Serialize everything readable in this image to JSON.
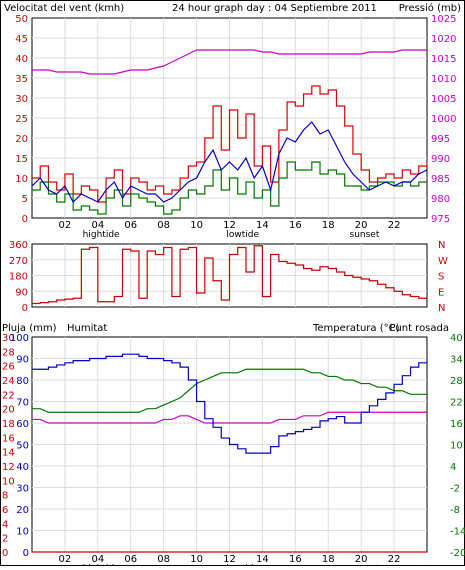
{
  "title": "24 hour graph day : 04 Septiembre 2011",
  "colors": {
    "wind": "#dd0000",
    "gust": "#0000cc",
    "avg": "#007700",
    "pressure": "#cc00cc",
    "dir": "#cc0000",
    "humidity": "#0000cc",
    "temperature": "#007700",
    "dewpoint": "#cc00cc",
    "rain": "#cc0000",
    "grid": "#dddddd",
    "frame": "#000000"
  },
  "x_ticks": [
    "02",
    "04",
    "06",
    "08",
    "10",
    "12",
    "14",
    "16",
    "18",
    "20",
    "22"
  ],
  "tide_labels": [
    "hightide",
    "lowtide",
    "sunset"
  ],
  "chart_data": [
    {
      "type": "line",
      "id": "wind-pressure",
      "left_axis_label": "Velocitat del vent (kmh)",
      "right_axis_label": "Pressió (mb)",
      "ylim_left": [
        0,
        50
      ],
      "ylim_right": [
        975,
        1025
      ],
      "left_ticks": [
        "50",
        "45",
        "40",
        "35",
        "30",
        "25",
        "20",
        "15",
        "10",
        "5",
        "0"
      ],
      "right_ticks": [
        "1025",
        "1020",
        "1015",
        "1010",
        "1005",
        "1000",
        "995",
        "990",
        "985",
        "980",
        "975"
      ],
      "x": [
        0,
        0.5,
        1,
        1.5,
        2,
        2.5,
        3,
        3.5,
        4,
        4.5,
        5,
        5.5,
        6,
        6.5,
        7,
        7.5,
        8,
        8.5,
        9,
        9.5,
        10,
        10.5,
        11,
        11.5,
        12,
        12.5,
        13,
        13.5,
        14,
        14.5,
        15,
        15.5,
        16,
        16.5,
        17,
        17.5,
        18,
        18.5,
        19,
        19.5,
        20,
        20.5,
        21,
        21.5,
        22,
        22.5,
        23,
        23.5,
        24
      ],
      "series": [
        {
          "values": [
            10,
            13,
            9,
            7,
            11,
            6,
            8,
            7,
            4,
            10,
            12,
            6,
            10,
            9,
            7,
            8,
            6,
            7,
            10,
            13,
            14,
            20,
            28,
            17,
            27,
            20,
            26,
            13,
            18,
            9,
            22,
            29,
            28,
            31,
            33,
            31,
            32,
            28,
            23,
            16,
            12,
            9,
            10,
            11,
            10,
            12,
            11,
            13,
            14
          ]
        },
        {
          "values": [
            8,
            10,
            7,
            6,
            8,
            4,
            6,
            5,
            4,
            7,
            9,
            5,
            8,
            7,
            6,
            6,
            4,
            5,
            7,
            9,
            10,
            14,
            17,
            12,
            14,
            12,
            15,
            10,
            13,
            7,
            16,
            20,
            19,
            22,
            24,
            21,
            22,
            18,
            14,
            11,
            9,
            7,
            8,
            9,
            8,
            9,
            9,
            11,
            12
          ]
        },
        {
          "values": [
            7,
            9,
            6,
            4,
            6,
            2,
            3,
            2,
            1,
            5,
            7,
            3,
            6,
            5,
            4,
            3,
            1,
            2,
            5,
            7,
            6,
            8,
            12,
            7,
            10,
            6,
            9,
            5,
            7,
            3,
            10,
            14,
            12,
            12,
            14,
            11,
            12,
            11,
            8,
            8,
            7,
            8,
            9,
            9,
            8,
            9,
            8,
            9,
            9
          ]
        },
        {
          "values": [
            1012,
            1012,
            1012,
            1011.5,
            1011.5,
            1011.5,
            1011.5,
            1011,
            1011,
            1011,
            1011,
            1011.5,
            1012,
            1012,
            1012,
            1012.5,
            1013,
            1014,
            1015,
            1016,
            1017,
            1017,
            1017,
            1017,
            1017,
            1017,
            1017,
            1017,
            1016.5,
            1016.5,
            1016,
            1016,
            1016,
            1016,
            1016,
            1016,
            1016,
            1016,
            1016,
            1016,
            1016,
            1016.5,
            1016.5,
            1016.5,
            1016.5,
            1017,
            1017,
            1017,
            1017
          ]
        }
      ]
    },
    {
      "type": "line",
      "id": "wind-direction",
      "ylim_left": [
        0,
        360
      ],
      "left_ticks": [
        "360",
        "270",
        "180",
        "90",
        "0"
      ],
      "right_ticks": [
        "N",
        "W",
        "S",
        "E",
        "N"
      ],
      "x": [
        0,
        0.5,
        1,
        1.5,
        2,
        2.5,
        3,
        3.5,
        4,
        4.5,
        5,
        5.5,
        6,
        6.5,
        7,
        7.5,
        8,
        8.5,
        9,
        9.5,
        10,
        10.5,
        11,
        11.5,
        12,
        12.5,
        13,
        13.5,
        14,
        14.5,
        15,
        15.5,
        16,
        16.5,
        17,
        17.5,
        18,
        18.5,
        19,
        19.5,
        20,
        20.5,
        21,
        21.5,
        22,
        22.5,
        23,
        23.5,
        24
      ],
      "series": [
        {
          "values": [
            20,
            25,
            30,
            40,
            45,
            50,
            330,
            340,
            30,
            30,
            60,
            330,
            320,
            50,
            320,
            300,
            340,
            60,
            330,
            340,
            80,
            280,
            150,
            40,
            300,
            340,
            200,
            350,
            60,
            300,
            260,
            250,
            240,
            220,
            210,
            230,
            220,
            200,
            180,
            170,
            160,
            150,
            130,
            110,
            90,
            70,
            60,
            50,
            40
          ]
        }
      ]
    },
    {
      "type": "line",
      "id": "rain-humidity-temperature",
      "left_axis_labels": [
        "Pluja (mm)",
        "Humitat"
      ],
      "right_axis_label": "Temperatura (°C)",
      "right_axis_label_2": "Punt rosada",
      "ylim_left": [
        0,
        30
      ],
      "ylim_left_2": [
        0,
        100
      ],
      "ylim_right": [
        -20,
        40
      ],
      "left_ticks_rain": [
        "30",
        "28",
        "26",
        "24",
        "22",
        "20",
        "18",
        "16",
        "14",
        "12",
        "10",
        "8",
        "6",
        "4",
        "2",
        "0"
      ],
      "left_ticks_hum": [
        "100",
        "90",
        "80",
        "70",
        "60",
        "50",
        "40",
        "30",
        "20",
        "10",
        "0"
      ],
      "right_ticks": [
        "40",
        "34",
        "28",
        "22",
        "16",
        "10",
        "4",
        "-2",
        "-8",
        "-14",
        "-20"
      ],
      "x": [
        0,
        0.5,
        1,
        1.5,
        2,
        2.5,
        3,
        3.5,
        4,
        4.5,
        5,
        5.5,
        6,
        6.5,
        7,
        7.5,
        8,
        8.5,
        9,
        9.5,
        10,
        10.5,
        11,
        11.5,
        12,
        12.5,
        13,
        13.5,
        14,
        14.5,
        15,
        15.5,
        16,
        16.5,
        17,
        17.5,
        18,
        18.5,
        19,
        19.5,
        20,
        20.5,
        21,
        21.5,
        22,
        22.5,
        23,
        23.5,
        24
      ],
      "series": [
        {
          "values": [
            85,
            85,
            86,
            87,
            88,
            89,
            89,
            90,
            90,
            91,
            91,
            92,
            92,
            91,
            90,
            90,
            89,
            88,
            86,
            80,
            70,
            62,
            58,
            53,
            50,
            48,
            46,
            46,
            46,
            49,
            54,
            55,
            56,
            57,
            58,
            61,
            62,
            63,
            60,
            60,
            65,
            68,
            71,
            74,
            78,
            82,
            86,
            88,
            90
          ]
        },
        {
          "values": [
            20,
            20,
            19,
            19,
            19,
            19,
            19,
            19,
            19,
            19,
            19,
            19,
            19,
            19,
            20,
            20,
            21,
            22,
            23,
            25,
            27,
            28,
            29,
            30,
            30,
            30,
            31,
            31,
            31,
            31,
            31,
            31,
            31,
            31,
            30,
            30,
            29,
            29,
            28,
            28,
            27,
            27,
            26,
            26,
            25,
            25,
            24,
            24,
            24
          ]
        },
        {
          "values": [
            17,
            17,
            16,
            16,
            16,
            16,
            16,
            16,
            16,
            16,
            16,
            16,
            16,
            16,
            16,
            16,
            17,
            17,
            18,
            18,
            17,
            16,
            16,
            16,
            16,
            16,
            16,
            16,
            16,
            16,
            17,
            17,
            17,
            18,
            18,
            18,
            19,
            19,
            19,
            19,
            19,
            19,
            19,
            19,
            19,
            19,
            19,
            19,
            19
          ]
        },
        {
          "values": [
            0,
            0,
            0,
            0,
            0,
            0,
            0,
            0,
            0,
            0,
            0,
            0,
            0,
            0,
            0,
            0,
            0,
            0,
            0,
            0,
            0,
            0,
            0,
            0,
            0,
            0,
            0,
            0,
            0,
            0,
            0,
            0,
            0,
            0,
            0,
            0,
            0,
            0,
            0,
            0,
            0,
            0,
            0,
            0,
            0,
            0,
            0,
            0,
            0
          ]
        }
      ]
    }
  ]
}
